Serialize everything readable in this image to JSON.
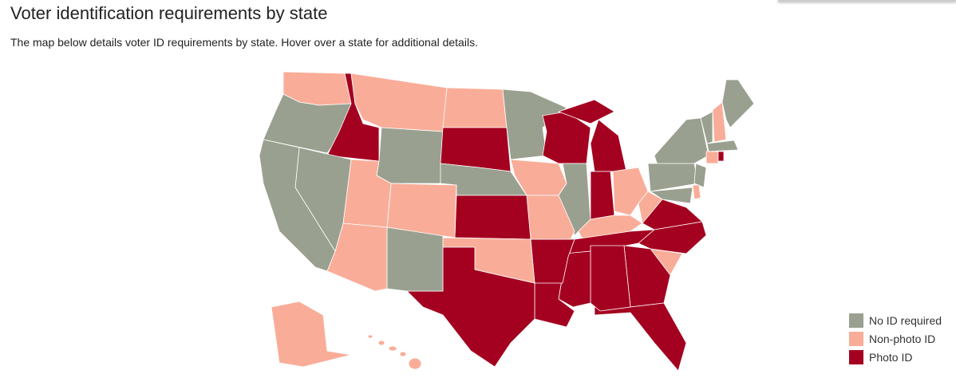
{
  "header": {
    "title": "Voter identification requirements by state",
    "subtitle": "The map below details voter ID requirements by state. Hover over a state for additional details."
  },
  "legend": {
    "items": [
      {
        "label": "No ID required",
        "color": "#9aa08f"
      },
      {
        "label": "Non-photo ID",
        "color": "#f9ad98"
      },
      {
        "label": "Photo ID",
        "color": "#a40020"
      }
    ]
  }
}
